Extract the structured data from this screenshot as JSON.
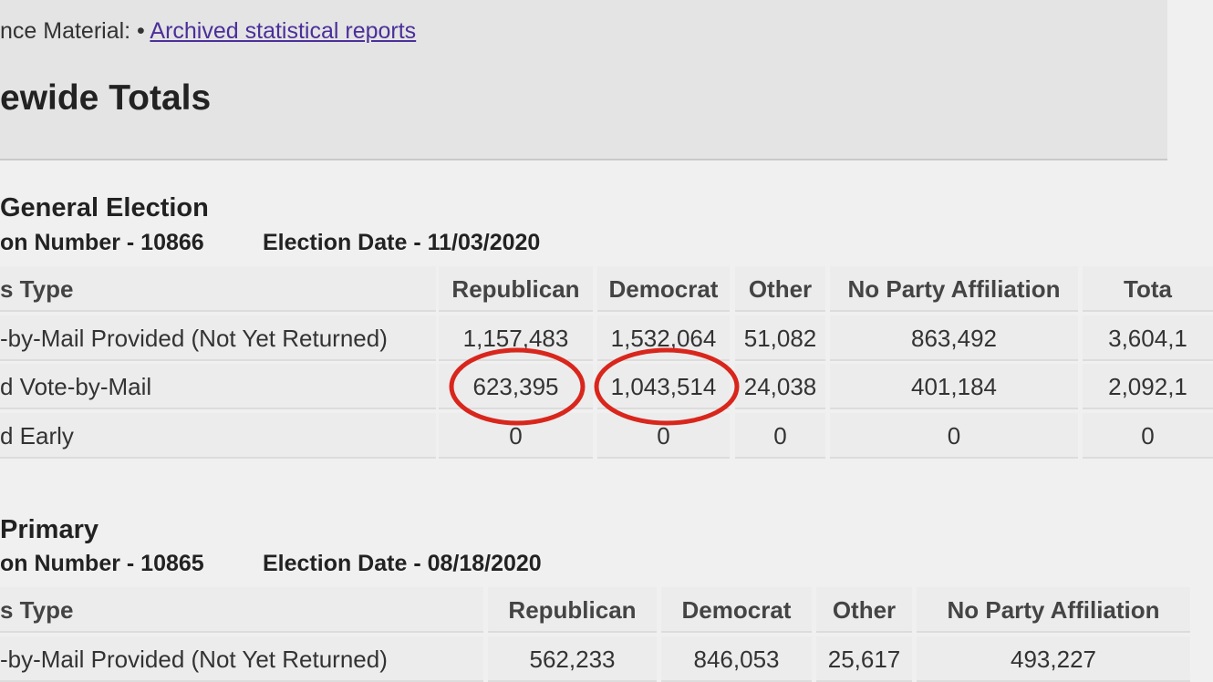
{
  "header": {
    "breadcrumb_label": "nce Material: •",
    "breadcrumb_link": "Archived statistical reports",
    "title": "ewide Totals"
  },
  "sections": [
    {
      "election": "General Election",
      "number": "on Number - 10866",
      "date": "Election Date - 11/03/2020",
      "table": {
        "columns": [
          "s Type",
          "Republican",
          "Democrat",
          "Other",
          "No Party Affiliation",
          "Tota"
        ],
        "rows": [
          [
            "-by-Mail Provided (Not Yet Returned)",
            "1,157,483",
            "1,532,064",
            "51,082",
            "863,492",
            "3,604,1"
          ],
          [
            "d Vote-by-Mail",
            "623,395",
            "1,043,514",
            "24,038",
            "401,184",
            "2,092,1"
          ],
          [
            "d Early",
            "0",
            "0",
            "0",
            "0",
            "0"
          ]
        ]
      }
    },
    {
      "election": "Primary",
      "number": "on Number - 10865",
      "date": "Election Date - 08/18/2020",
      "table": {
        "columns": [
          "s Type",
          "Republican",
          "Democrat",
          "Other",
          "No Party Affiliation"
        ],
        "rows": [
          [
            "-by-Mail Provided (Not Yet Returned)",
            "562,233",
            "846,053",
            "25,617",
            "493,227"
          ]
        ]
      }
    }
  ]
}
